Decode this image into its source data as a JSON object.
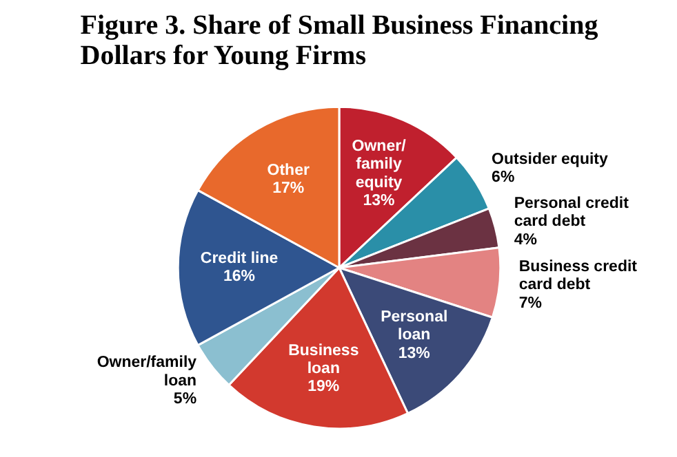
{
  "chart_data": {
    "type": "pie",
    "title": "Figure 3. Share of Small Business Financing Dollars for Young Firms",
    "categories": [
      "Owner/family equity",
      "Outsider equity",
      "Personal credit card debt",
      "Business credit card debt",
      "Personal loan",
      "Business loan",
      "Owner/family loan",
      "Credit line",
      "Other"
    ],
    "values": [
      13,
      6,
      4,
      7,
      13,
      19,
      5,
      16,
      17
    ],
    "colors": [
      "#c0202e",
      "#2a8fa8",
      "#6b3242",
      "#e38382",
      "#3b4a78",
      "#d2392e",
      "#8bbfd0",
      "#2f5590",
      "#e8692c"
    ],
    "value_labels": [
      "13%",
      "6%",
      "4%",
      "7%",
      "13%",
      "19%",
      "5%",
      "16%",
      "17%"
    ]
  }
}
